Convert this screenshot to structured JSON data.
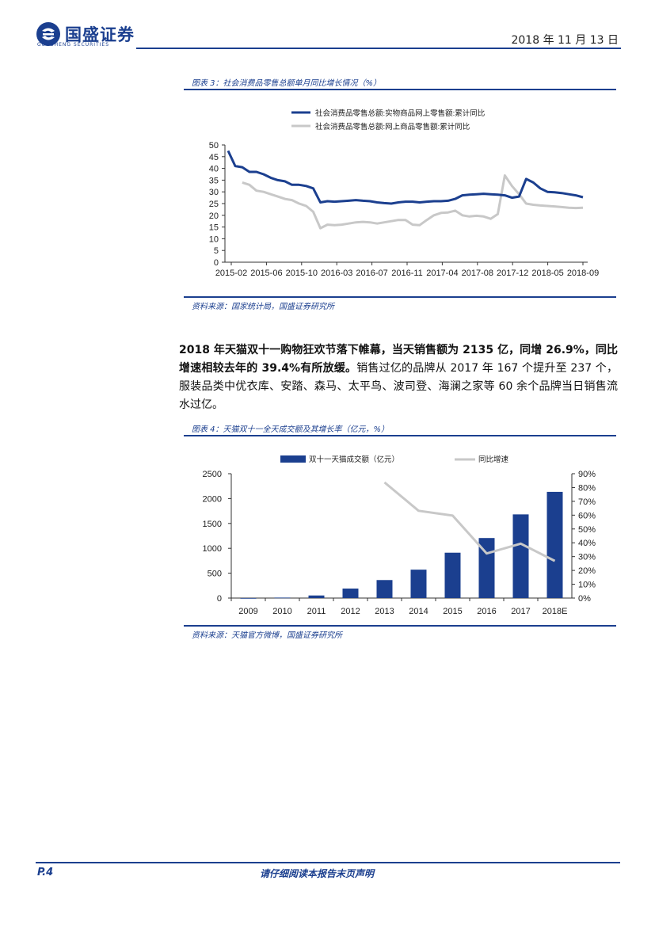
{
  "header": {
    "logo_name": "国盛证券",
    "logo_sub": "GUOSHENG SECURITIES",
    "date": "2018 年 11 月 13 日"
  },
  "figure3": {
    "title": "图表 3：社会消费品零售总额单月同比增长情况（%）",
    "source": "资料来源：国家统计局，国盛证券研究所",
    "colors": {
      "series1": "#1b3f8f",
      "series2": "#c8c8c8"
    }
  },
  "paragraph": {
    "bold": "2018 年天猫双十一购物狂欢节落下帷幕，当天销售额为 2135 亿，同增 26.9%，同比增速相较去年的 39.4%有所放缓。",
    "normal": "销售过亿的品牌从 2017 年 167 个提升至 237 个，服装品类中优衣库、安踏、森马、太平鸟、波司登、海澜之家等 60 余个品牌当日销售流水过亿。"
  },
  "figure4": {
    "title": "图表 4：天猫双十一全天成交额及其增长率（亿元，%）",
    "source": "资料来源：天猫官方微博，国盛证券研究所",
    "colors": {
      "bar": "#1b3f8f",
      "line": "#c8c8c8"
    }
  },
  "footer": {
    "page": "P.4",
    "disclaimer": "请仔细阅读本报告末页声明"
  },
  "chart_data": [
    {
      "type": "line",
      "series": [
        {
          "name": "社会消费品零售总额:实物商品网上零售额:累计同比",
          "values": [
            47.5,
            41,
            40.5,
            38.5,
            38.5,
            37.5,
            36,
            35,
            34.5,
            33,
            33,
            32.5,
            31.5,
            25.5,
            26,
            25.8,
            26,
            26.2,
            26.5,
            26.2,
            26,
            25.5,
            25.2,
            25,
            25.5,
            25.8,
            25.8,
            25.5,
            25.8,
            26,
            26,
            26.2,
            27,
            28.5,
            28.8,
            29,
            29.2,
            29,
            28.8,
            28.5,
            27.5,
            28,
            35.5,
            34,
            31.5,
            30,
            29.8,
            29.5,
            29,
            28.5,
            27.7
          ]
        },
        {
          "name": "社会消费品零售总额:网上商品零售额:累计同比",
          "values": [
            null,
            null,
            34,
            33,
            30.5,
            30,
            29,
            28,
            27,
            26.5,
            25,
            24,
            21.5,
            14.5,
            16,
            15.8,
            16,
            16.5,
            17,
            17.2,
            17,
            16.5,
            17,
            17.5,
            18,
            18,
            16,
            15.8,
            18,
            20,
            21,
            21.2,
            22,
            20,
            19.5,
            19.8,
            19.5,
            18.5,
            20.5,
            37,
            32.5,
            29,
            25,
            24.5,
            24.2,
            24,
            23.8,
            23.5,
            23.2,
            23.1,
            23.2
          ]
        }
      ],
      "x_tick_labels": [
        "2015-02",
        "2015-06",
        "2015-10",
        "2016-03",
        "2016-07",
        "2016-11",
        "2017-04",
        "2017-08",
        "2017-12",
        "2018-05",
        "2018-09"
      ],
      "y_tick_labels": [
        "0",
        "5",
        "10",
        "15",
        "20",
        "25",
        "30",
        "35",
        "40",
        "45",
        "50"
      ],
      "ylim": [
        0,
        50
      ],
      "legend": "top-left"
    },
    {
      "type": "bar",
      "categories": [
        "2009",
        "2010",
        "2011",
        "2012",
        "2013",
        "2014",
        "2015",
        "2016",
        "2017",
        "2018E"
      ],
      "series": [
        {
          "name": "双十一天猫成交额（亿元）",
          "type": "bar",
          "axis": "left",
          "values": [
            0.5,
            9.4,
            52,
            191,
            362,
            571,
            912,
            1207,
            1682,
            2135
          ]
        },
        {
          "name": "同比增速",
          "type": "line",
          "axis": "right",
          "values": [
            null,
            null,
            null,
            null,
            83.7,
            63.2,
            59.7,
            32.3,
            39.4,
            26.9
          ]
        }
      ],
      "y_tick_labels": [
        "0",
        "500",
        "1000",
        "1500",
        "2000",
        "2500"
      ],
      "y2_tick_labels": [
        "0%",
        "10%",
        "20%",
        "30%",
        "40%",
        "50%",
        "60%",
        "70%",
        "80%",
        "90%"
      ],
      "ylim": [
        0,
        2500
      ],
      "y2lim": [
        0,
        90
      ],
      "legend": "top-center"
    }
  ]
}
